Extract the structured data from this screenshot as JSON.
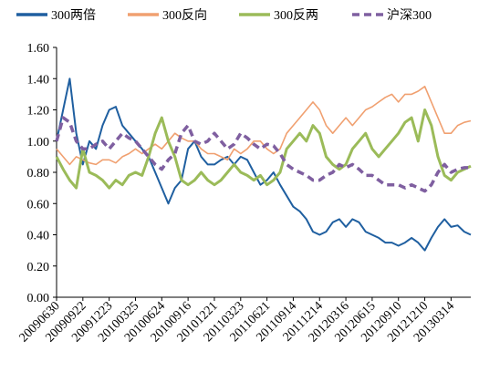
{
  "chart_data": {
    "type": "line",
    "categories": [
      "20090630",
      null,
      null,
      null,
      "20090922",
      null,
      null,
      null,
      "20091223",
      null,
      null,
      null,
      "20100325",
      null,
      null,
      null,
      "20100624",
      null,
      null,
      null,
      "20100916",
      null,
      null,
      null,
      "20101221",
      null,
      null,
      null,
      "20110323",
      null,
      null,
      null,
      "20110621",
      null,
      null,
      null,
      "20110914",
      null,
      null,
      null,
      "20111214",
      null,
      null,
      null,
      "20120316",
      null,
      null,
      null,
      "20120615",
      null,
      null,
      null,
      "20120910",
      null,
      null,
      null,
      "20121210",
      null,
      null,
      null,
      "20130314",
      null,
      null,
      null
    ],
    "series": [
      {
        "name": "300两倍",
        "color": "#1f5fa0",
        "values": [
          1.0,
          1.2,
          1.4,
          1.05,
          0.85,
          1.0,
          0.95,
          1.1,
          1.2,
          1.22,
          1.1,
          1.05,
          1.0,
          0.95,
          0.9,
          0.8,
          0.7,
          0.6,
          0.7,
          0.75,
          0.95,
          1.0,
          0.9,
          0.85,
          0.85,
          0.88,
          0.9,
          0.85,
          0.9,
          0.88,
          0.8,
          0.72,
          0.75,
          0.8,
          0.72,
          0.65,
          0.58,
          0.55,
          0.5,
          0.42,
          0.4,
          0.42,
          0.48,
          0.5,
          0.45,
          0.5,
          0.48,
          0.42,
          0.4,
          0.38,
          0.35,
          0.35,
          0.33,
          0.35,
          0.38,
          0.35,
          0.3,
          0.38,
          0.45,
          0.5,
          0.45,
          0.46,
          0.42,
          0.4
        ]
      },
      {
        "name": "300反向",
        "color": "#f0a070",
        "values": [
          0.95,
          0.9,
          0.85,
          0.9,
          0.88,
          0.86,
          0.85,
          0.88,
          0.88,
          0.86,
          0.9,
          0.92,
          0.95,
          0.92,
          0.95,
          0.98,
          0.95,
          1.0,
          1.05,
          1.02,
          1.0,
          1.0,
          0.95,
          0.92,
          0.92,
          0.9,
          0.88,
          0.95,
          0.92,
          0.95,
          1.0,
          1.0,
          0.95,
          0.92,
          0.95,
          1.05,
          1.1,
          1.15,
          1.2,
          1.25,
          1.2,
          1.1,
          1.05,
          1.1,
          1.15,
          1.1,
          1.15,
          1.2,
          1.22,
          1.25,
          1.28,
          1.3,
          1.25,
          1.3,
          1.3,
          1.32,
          1.35,
          1.25,
          1.15,
          1.05,
          1.05,
          1.1,
          1.12,
          1.13
        ]
      },
      {
        "name": "300反两",
        "color": "#9bbb59",
        "values": [
          0.9,
          0.82,
          0.75,
          0.7,
          0.95,
          0.8,
          0.78,
          0.75,
          0.7,
          0.75,
          0.72,
          0.78,
          0.8,
          0.78,
          0.9,
          1.05,
          1.15,
          1.0,
          0.9,
          0.75,
          0.72,
          0.75,
          0.8,
          0.75,
          0.72,
          0.75,
          0.8,
          0.85,
          0.8,
          0.78,
          0.75,
          0.78,
          0.72,
          0.75,
          0.8,
          0.95,
          1.0,
          1.05,
          1.0,
          1.1,
          1.05,
          0.9,
          0.85,
          0.82,
          0.85,
          0.95,
          1.0,
          1.05,
          0.95,
          0.9,
          0.95,
          1.0,
          1.05,
          1.12,
          1.15,
          1.0,
          1.2,
          1.1,
          0.9,
          0.78,
          0.75,
          0.8,
          0.82,
          0.84
        ]
      },
      {
        "name": "沪深300",
        "color": "#7f5fa0",
        "dashed": true,
        "values": [
          1.0,
          1.15,
          1.12,
          1.0,
          0.95,
          0.95,
          0.98,
          1.0,
          0.95,
          1.0,
          1.05,
          1.02,
          1.0,
          0.95,
          0.9,
          0.85,
          0.82,
          0.88,
          0.92,
          1.05,
          1.1,
          1.0,
          0.98,
          1.0,
          1.05,
          1.0,
          0.95,
          0.98,
          1.05,
          1.02,
          0.98,
          0.95,
          0.98,
          0.97,
          0.92,
          0.85,
          0.82,
          0.8,
          0.78,
          0.75,
          0.75,
          0.78,
          0.8,
          0.85,
          0.83,
          0.85,
          0.82,
          0.78,
          0.78,
          0.75,
          0.72,
          0.72,
          0.72,
          0.7,
          0.72,
          0.7,
          0.68,
          0.72,
          0.8,
          0.85,
          0.8,
          0.82,
          0.83,
          0.83
        ]
      }
    ],
    "ylim": [
      0,
      1.6
    ],
    "yticks": [
      {
        "value": 0,
        "label": "0.00"
      },
      {
        "value": 0.2,
        "label": "0.20"
      },
      {
        "value": 0.4,
        "label": "0.40"
      },
      {
        "value": 0.6,
        "label": "0.60"
      },
      {
        "value": 0.8,
        "label": "0.80"
      },
      {
        "value": 1.0,
        "label": "1.00"
      },
      {
        "value": 1.2,
        "label": "1.20"
      },
      {
        "value": 1.4,
        "label": "1.40"
      },
      {
        "value": 1.6,
        "label": "1.60"
      }
    ],
    "legend": "top"
  }
}
